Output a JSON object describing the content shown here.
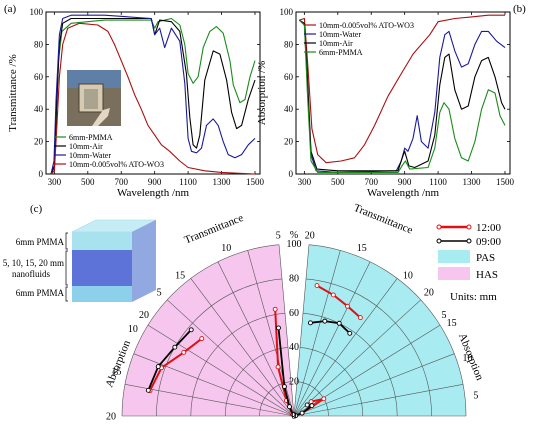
{
  "figure": {
    "panel_a_tag": "(a)",
    "panel_b_tag": "(b)",
    "panel_c_tag": "(c)"
  },
  "stack_labels": {
    "top": "6mm PMMA",
    "middle_1": "5, 10, 15, 20 mm",
    "middle_2": "nanofluids",
    "bottom": "6mm PMMA"
  },
  "colors": {
    "pmma": "#1a8a1a",
    "air": "#000000",
    "water": "#1a1a99",
    "ato": "#aa1010",
    "noon": "#e01010",
    "morning": "#000000",
    "pas_fill": "#a8ecf2",
    "has_fill": "#f6c6ef",
    "transmittance_text": "#cc1010"
  },
  "chart_data": [
    {
      "type": "line",
      "panel": "(a)",
      "xlabel": "Wavelength /nm",
      "ylabel": "Transmittance /%",
      "xlim": [
        250,
        1530
      ],
      "ylim": [
        0,
        100
      ],
      "xticks": [
        300,
        500,
        700,
        900,
        1100,
        1300,
        1500
      ],
      "yticks": [
        0,
        20,
        40,
        60,
        80,
        100
      ],
      "legend_position": "bottom-left",
      "series": [
        {
          "name": "6mm-PMMA",
          "color": "#1a8a1a",
          "points": [
            [
              280,
              0
            ],
            [
              300,
              4
            ],
            [
              310,
              30
            ],
            [
              325,
              70
            ],
            [
              345,
              88
            ],
            [
              400,
              93
            ],
            [
              600,
              95
            ],
            [
              880,
              95
            ],
            [
              900,
              90
            ],
            [
              920,
              94
            ],
            [
              1000,
              96
            ],
            [
              1050,
              92
            ],
            [
              1080,
              80
            ],
            [
              1100,
              62
            ],
            [
              1130,
              56
            ],
            [
              1160,
              60
            ],
            [
              1190,
              78
            ],
            [
              1230,
              88
            ],
            [
              1270,
              91
            ],
            [
              1310,
              87
            ],
            [
              1350,
              70
            ],
            [
              1370,
              55
            ],
            [
              1410,
              44
            ],
            [
              1440,
              46
            ],
            [
              1470,
              60
            ],
            [
              1500,
              70
            ]
          ]
        },
        {
          "name": "10mm-Air",
          "color": "#000000",
          "points": [
            [
              280,
              0
            ],
            [
              300,
              5
            ],
            [
              312,
              40
            ],
            [
              330,
              80
            ],
            [
              350,
              93
            ],
            [
              400,
              96
            ],
            [
              600,
              96
            ],
            [
              880,
              96
            ],
            [
              900,
              86
            ],
            [
              930,
              95
            ],
            [
              1000,
              94
            ],
            [
              1050,
              88
            ],
            [
              1090,
              62
            ],
            [
              1110,
              35
            ],
            [
              1130,
              18
            ],
            [
              1150,
              16
            ],
            [
              1170,
              24
            ],
            [
              1200,
              58
            ],
            [
              1250,
              76
            ],
            [
              1290,
              74
            ],
            [
              1330,
              58
            ],
            [
              1360,
              38
            ],
            [
              1390,
              28
            ],
            [
              1420,
              30
            ],
            [
              1460,
              46
            ],
            [
              1500,
              58
            ]
          ]
        },
        {
          "name": "10mm-Water",
          "color": "#1a1a99",
          "points": [
            [
              280,
              0
            ],
            [
              298,
              8
            ],
            [
              310,
              45
            ],
            [
              330,
              86
            ],
            [
              350,
              96
            ],
            [
              400,
              98
            ],
            [
              600,
              98
            ],
            [
              880,
              96
            ],
            [
              900,
              86
            ],
            [
              930,
              90
            ],
            [
              960,
              78
            ],
            [
              1000,
              90
            ],
            [
              1050,
              82
            ],
            [
              1080,
              56
            ],
            [
              1100,
              22
            ],
            [
              1120,
              14
            ],
            [
              1150,
              13
            ],
            [
              1180,
              16
            ],
            [
              1210,
              30
            ],
            [
              1250,
              34
            ],
            [
              1280,
              30
            ],
            [
              1310,
              20
            ],
            [
              1340,
              12
            ],
            [
              1380,
              10
            ],
            [
              1420,
              12
            ],
            [
              1460,
              18
            ],
            [
              1500,
              22
            ]
          ]
        },
        {
          "name": "10mm-0.005vol% ATO-WO3",
          "color": "#aa1010",
          "points": [
            [
              280,
              0
            ],
            [
              300,
              2
            ],
            [
              315,
              30
            ],
            [
              330,
              60
            ],
            [
              350,
              80
            ],
            [
              380,
              90
            ],
            [
              450,
              93
            ],
            [
              560,
              92
            ],
            [
              620,
              88
            ],
            [
              660,
              80
            ],
            [
              700,
              70
            ],
            [
              740,
              60
            ],
            [
              780,
              49
            ],
            [
              820,
              40
            ],
            [
              860,
              30
            ],
            [
              900,
              24
            ],
            [
              940,
              18
            ],
            [
              990,
              14
            ],
            [
              1050,
              8
            ],
            [
              1100,
              4
            ],
            [
              1200,
              2
            ],
            [
              1300,
              1
            ],
            [
              1500,
              0
            ]
          ]
        }
      ]
    },
    {
      "type": "line",
      "panel": "(b)",
      "xlabel": "Wavelength /nm",
      "ylabel": "Absorption /%",
      "xlim": [
        250,
        1530
      ],
      "ylim": [
        0,
        100
      ],
      "xticks": [
        300,
        500,
        700,
        900,
        1100,
        1300,
        1500
      ],
      "yticks": [
        0,
        20,
        40,
        60,
        80,
        100
      ],
      "legend_position": "top-left",
      "series": [
        {
          "name": "10mm-0.005vol% ATO-WO3",
          "color": "#aa1010",
          "points": [
            [
              270,
              95
            ],
            [
              300,
              96
            ],
            [
              320,
              68
            ],
            [
              345,
              28
            ],
            [
              380,
              12
            ],
            [
              430,
              7
            ],
            [
              520,
              8
            ],
            [
              600,
              10
            ],
            [
              660,
              18
            ],
            [
              720,
              30
            ],
            [
              800,
              48
            ],
            [
              880,
              62
            ],
            [
              950,
              74
            ],
            [
              1050,
              86
            ],
            [
              1100,
              94
            ],
            [
              1200,
              96
            ],
            [
              1300,
              97
            ],
            [
              1400,
              98
            ],
            [
              1500,
              98
            ]
          ]
        },
        {
          "name": "10mm-Water",
          "color": "#1a1a99",
          "points": [
            [
              270,
              95
            ],
            [
              300,
              92
            ],
            [
              318,
              55
            ],
            [
              340,
              12
            ],
            [
              370,
              2
            ],
            [
              500,
              1
            ],
            [
              850,
              2
            ],
            [
              880,
              8
            ],
            [
              900,
              16
            ],
            [
              920,
              14
            ],
            [
              950,
              22
            ],
            [
              975,
              36
            ],
            [
              1000,
              20
            ],
            [
              1040,
              16
            ],
            [
              1080,
              38
            ],
            [
              1110,
              72
            ],
            [
              1140,
              86
            ],
            [
              1165,
              88
            ],
            [
              1200,
              76
            ],
            [
              1240,
              66
            ],
            [
              1280,
              68
            ],
            [
              1320,
              80
            ],
            [
              1360,
              88
            ],
            [
              1400,
              88
            ],
            [
              1450,
              82
            ],
            [
              1500,
              78
            ]
          ]
        },
        {
          "name": "10mm-Air",
          "color": "#000000",
          "points": [
            [
              270,
              95
            ],
            [
              300,
              93
            ],
            [
              318,
              60
            ],
            [
              340,
              14
            ],
            [
              375,
              3
            ],
            [
              500,
              2
            ],
            [
              860,
              2
            ],
            [
              885,
              10
            ],
            [
              900,
              14
            ],
            [
              925,
              5
            ],
            [
              960,
              4
            ],
            [
              1040,
              8
            ],
            [
              1080,
              24
            ],
            [
              1110,
              55
            ],
            [
              1140,
              72
            ],
            [
              1165,
              74
            ],
            [
              1200,
              52
            ],
            [
              1240,
              40
            ],
            [
              1280,
              42
            ],
            [
              1320,
              60
            ],
            [
              1360,
              70
            ],
            [
              1400,
              72
            ],
            [
              1440,
              60
            ],
            [
              1480,
              44
            ],
            [
              1500,
              40
            ]
          ]
        },
        {
          "name": "6mm-PMMA",
          "color": "#1a8a1a",
          "points": [
            [
              270,
              95
            ],
            [
              300,
              92
            ],
            [
              318,
              50
            ],
            [
              340,
              8
            ],
            [
              380,
              1
            ],
            [
              860,
              1
            ],
            [
              890,
              6
            ],
            [
              905,
              8
            ],
            [
              930,
              3
            ],
            [
              1040,
              4
            ],
            [
              1080,
              16
            ],
            [
              1110,
              38
            ],
            [
              1135,
              44
            ],
            [
              1165,
              40
            ],
            [
              1200,
              22
            ],
            [
              1240,
              10
            ],
            [
              1280,
              8
            ],
            [
              1320,
              20
            ],
            [
              1360,
              40
            ],
            [
              1400,
              52
            ],
            [
              1440,
              50
            ],
            [
              1470,
              36
            ],
            [
              1500,
              30
            ]
          ]
        }
      ]
    },
    {
      "type": "radar",
      "panel": "(c)",
      "units": "Units: mm",
      "radial_label": "%",
      "radial_ticks": [
        0,
        20,
        40,
        60,
        80,
        100
      ],
      "right_top_axis": "Transmittance",
      "right_top_ticks": [
        "20",
        "15",
        "10",
        "5"
      ],
      "right_bottom_axis": "Absorption",
      "right_bottom_ticks": [
        "20",
        "15",
        "10",
        "5"
      ],
      "left_top_axis": "Transmittance",
      "left_top_ticks": [
        "5",
        "10",
        "15",
        "20"
      ],
      "left_bottom_axis": "Absorption",
      "left_bottom_ticks": [
        "5",
        "10",
        "15",
        "20"
      ],
      "legend": [
        "12:00",
        "09:00",
        "PAS",
        "HAS"
      ],
      "series": [
        {
          "name": "12:00",
          "color": "#e01010",
          "pas_transmittance": [
            77,
            74,
            71,
            69
          ],
          "pas_absorption": [
            13,
            20,
            5,
            1
          ],
          "has_transmittance": [
            63,
            30,
            10,
            2
          ],
          "has_absorption": [
            70,
            74,
            82,
            85
          ]
        },
        {
          "name": "09:00",
          "color": "#000000",
          "pas_transmittance": [
            55,
            58,
            60,
            58
          ],
          "pas_absorption": [
            10,
            12,
            5,
            1
          ],
          "has_transmittance": [
            52,
            18,
            6,
            1
          ],
          "has_absorption": [
            78,
            80,
            84,
            86
          ]
        }
      ]
    }
  ]
}
